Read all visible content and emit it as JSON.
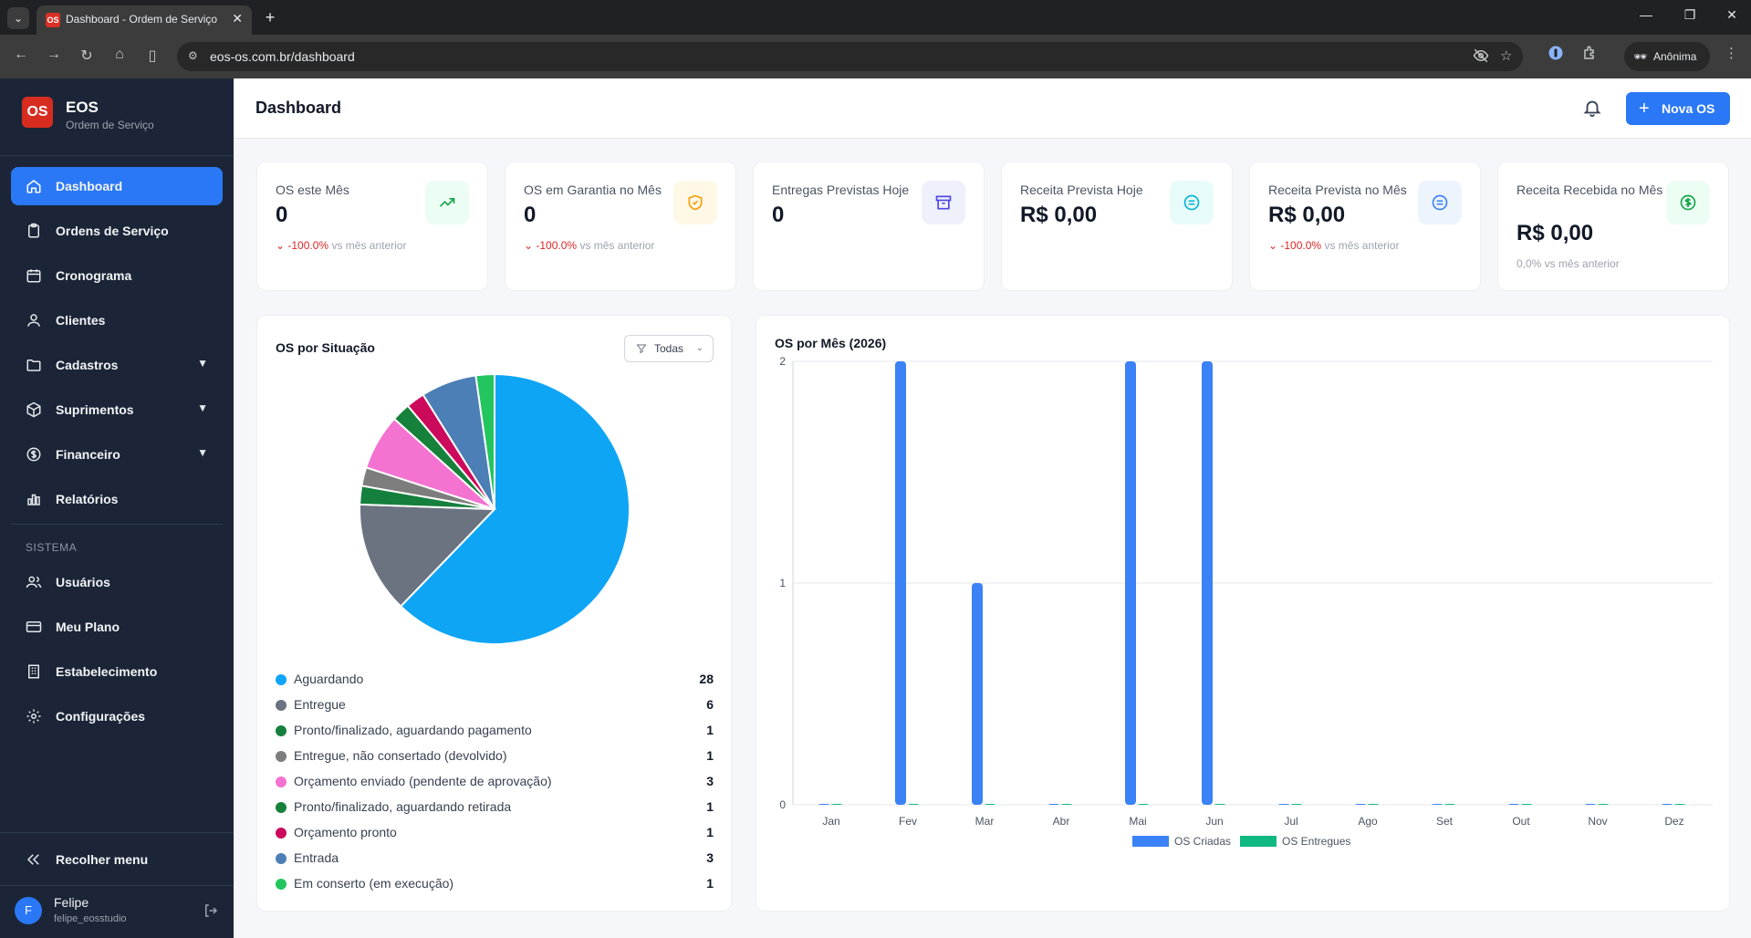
{
  "browser": {
    "tab_title": "Dashboard - Ordem de Serviço",
    "url": "eos-os.com.br/dashboard",
    "profile_label": "Anônima"
  },
  "sidebar": {
    "brand_name": "EOS",
    "brand_subtitle": "Ordem de Serviço",
    "logo_text": "OS",
    "items": [
      {
        "label": "Dashboard",
        "icon": "home-icon",
        "active": true
      },
      {
        "label": "Ordens de Serviço",
        "icon": "clipboard-icon"
      },
      {
        "label": "Cronograma",
        "icon": "calendar-icon"
      },
      {
        "label": "Clientes",
        "icon": "users-icon"
      },
      {
        "label": "Cadastros",
        "icon": "folder-icon",
        "expandable": true
      },
      {
        "label": "Suprimentos",
        "icon": "package-icon",
        "expandable": true
      },
      {
        "label": "Financeiro",
        "icon": "dollar-icon",
        "expandable": true
      },
      {
        "label": "Relatórios",
        "icon": "bar-chart-icon"
      }
    ],
    "section_label": "SISTEMA",
    "system_items": [
      {
        "label": "Usuários",
        "icon": "user-group-icon"
      },
      {
        "label": "Meu Plano",
        "icon": "credit-card-icon"
      },
      {
        "label": "Estabelecimento",
        "icon": "building-icon"
      },
      {
        "label": "Configurações",
        "icon": "gear-icon"
      }
    ],
    "collapse_label": "Recolher menu",
    "user": {
      "initial": "F",
      "name": "Felipe",
      "handle": "felipe_eosstudio"
    }
  },
  "header": {
    "title": "Dashboard",
    "new_button": "Nova OS"
  },
  "kpis": [
    {
      "label": "OS este Mês",
      "value": "0",
      "delta": "-100.0%",
      "delta_text": "vs mês anterior",
      "icon": "trending-up-icon",
      "icon_bg": "#ecfdf3",
      "icon_color": "#16a34a"
    },
    {
      "label": "OS em Garantia no Mês",
      "value": "0",
      "delta": "-100.0%",
      "delta_text": "vs mês anterior",
      "icon": "shield-check-icon",
      "icon_bg": "#fff8e6",
      "icon_color": "#f59e0b"
    },
    {
      "label": "Entregas Previstas Hoje",
      "value": "0",
      "icon": "archive-icon",
      "icon_bg": "#eef0fb",
      "icon_color": "#4f46e5"
    },
    {
      "label": "Receita Prevista Hoje",
      "value": "R$ 0,00",
      "icon": "list-circle-icon",
      "icon_bg": "#e8fbfb",
      "icon_color": "#06b6d4"
    },
    {
      "label": "Receita Prevista no Mês",
      "value": "R$ 0,00",
      "delta": "-100.0%",
      "delta_text": "vs mês anterior",
      "icon": "list-circle-icon",
      "icon_bg": "#eef4fe",
      "icon_color": "#3b82f6"
    },
    {
      "label": "Receita Recebida no Mês",
      "value": "R$ 0,00",
      "delta_text": "0,0% vs mês anterior",
      "icon": "dollar-circle-icon",
      "icon_bg": "#ecfdf3",
      "icon_color": "#16a34a"
    }
  ],
  "status_card": {
    "title": "OS por Situação",
    "filter_label": "Todas",
    "items": [
      {
        "label": "Aguardando",
        "count": 28,
        "color": "#0ea5f5"
      },
      {
        "label": "Entregue",
        "count": 6,
        "color": "#6b7280"
      },
      {
        "label": "Pronto/finalizado, aguardando pagamento",
        "count": 1,
        "color": "#15803d"
      },
      {
        "label": "Entregue, não consertado (devolvido)",
        "count": 1,
        "color": "#7d7d7d"
      },
      {
        "label": "Orçamento enviado (pendente de aprovação)",
        "count": 3,
        "color": "#f472d0"
      },
      {
        "label": "Pronto/finalizado, aguardando retirada",
        "count": 1,
        "color": "#16813a"
      },
      {
        "label": "Orçamento pronto",
        "count": 1,
        "color": "#cc0a5c"
      },
      {
        "label": "Entrada",
        "count": 3,
        "color": "#4b7fb5"
      },
      {
        "label": "Em conserto (em execução)",
        "count": 1,
        "color": "#22c55e"
      }
    ]
  },
  "chart_data": {
    "type": "bar",
    "title": "OS por Mês (2026)",
    "categories": [
      "Jan",
      "Fev",
      "Mar",
      "Abr",
      "Mai",
      "Jun",
      "Jul",
      "Ago",
      "Set",
      "Out",
      "Nov",
      "Dez"
    ],
    "series": [
      {
        "name": "OS Criadas",
        "color": "#3b82f6",
        "values": [
          0,
          2,
          1,
          0,
          2,
          2,
          0,
          0,
          0,
          0,
          0,
          0
        ]
      },
      {
        "name": "OS Entregues",
        "color": "#10b981",
        "values": [
          0,
          0,
          0,
          0,
          0,
          0,
          0,
          0,
          0,
          0,
          0,
          0
        ]
      }
    ],
    "ylim": [
      0,
      2
    ],
    "yticks": [
      0,
      1,
      2
    ],
    "grid": true,
    "legend": "bottom"
  }
}
